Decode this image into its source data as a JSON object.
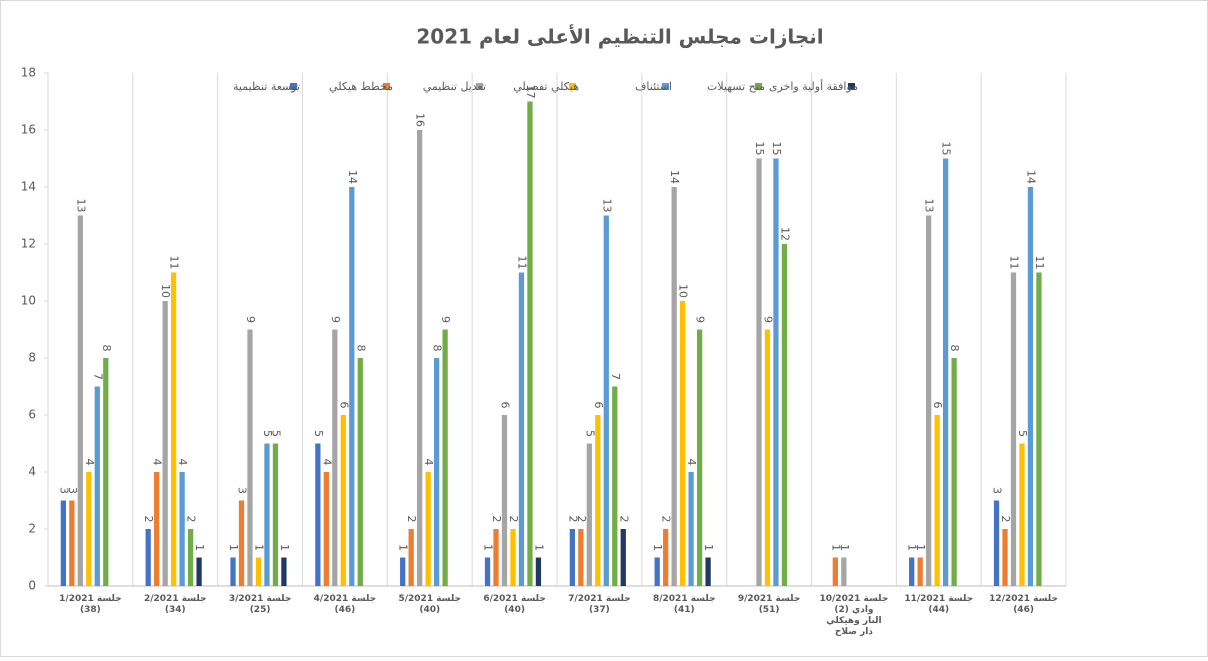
{
  "chart_data": {
    "type": "bar",
    "title": "انجازات مجلس التنظيم الأعلى لعام 2021",
    "categories": [
      "جلسة 1/2021 (38)",
      "جلسة 2/2021 (34)",
      "جلسة 3/2021 (25)",
      "جلسة 4/2021 (46)",
      "جلسة 5/2021 (40)",
      "جلسة 6/2021 (40)",
      "جلسة 7/2021 (37)",
      "جلسة 8/2021 (41)",
      "جلسة 9/2021 (51)",
      "جلسة 10/2021 (2) وادي النار وهيكلي دار صلاح",
      "جلسة 11/2021 (44)",
      "جلسة 12/2021 (46)"
    ],
    "series": [
      {
        "name": "توسعة تنظيمية",
        "color": "#4472c4",
        "values": [
          3,
          2,
          1,
          5,
          1,
          1,
          2,
          1,
          null,
          null,
          1,
          3
        ]
      },
      {
        "name": "مخطط هيكلي",
        "color": "#ed7d31",
        "values": [
          3,
          4,
          3,
          4,
          2,
          2,
          2,
          2,
          null,
          1,
          1,
          2
        ]
      },
      {
        "name": "تعديل تنظيمي",
        "color": "#a5a5a5",
        "values": [
          13,
          10,
          9,
          9,
          16,
          6,
          5,
          14,
          15,
          1,
          13,
          11
        ]
      },
      {
        "name": "هيكلي تفصيلي",
        "color": "#ffc000",
        "values": [
          4,
          11,
          1,
          6,
          4,
          2,
          6,
          10,
          9,
          null,
          6,
          5
        ]
      },
      {
        "name": "استئناف",
        "color": "#5b9bd5",
        "values": [
          7,
          4,
          5,
          14,
          8,
          11,
          13,
          4,
          15,
          null,
          15,
          14
        ]
      },
      {
        "name": "منح تسهيلات",
        "color": "#70ad47",
        "values": [
          8,
          2,
          5,
          8,
          9,
          17,
          7,
          9,
          12,
          null,
          8,
          11
        ]
      },
      {
        "name": "موافقة أولية واخرى",
        "color": "#203864",
        "values": [
          null,
          1,
          1,
          null,
          null,
          1,
          2,
          1,
          null,
          null,
          null,
          null
        ]
      }
    ],
    "ylim": [
      0,
      18
    ],
    "yticks": [
      0,
      2,
      4,
      6,
      8,
      10,
      12,
      14,
      16,
      18
    ]
  }
}
